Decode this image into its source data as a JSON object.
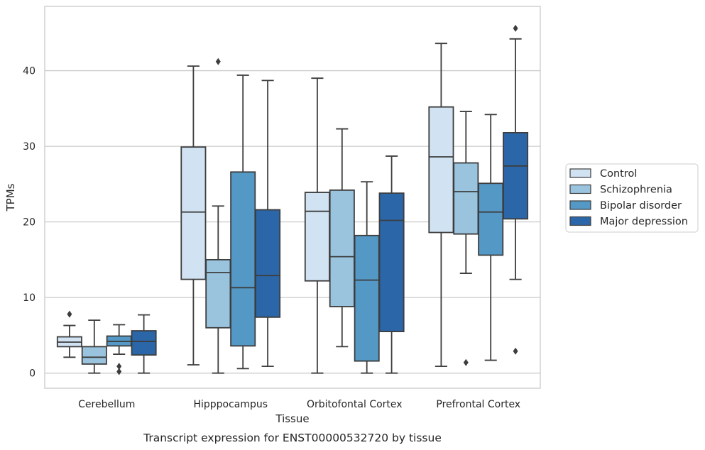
{
  "caption": "Transcript expression for ENST00000532720 by tissue",
  "chart_data": {
    "type": "box",
    "xlabel": "Tissue",
    "ylabel": "TPMs",
    "ylim": [
      -2,
      48.5
    ],
    "yticks": [
      0,
      10,
      20,
      30,
      40
    ],
    "grid": "horizontal",
    "legend_position": "right",
    "categories": [
      "Cerebellum",
      "Hipppocampus",
      "Orbitofontal Cortex",
      "Prefrontal Cortex"
    ],
    "series": [
      {
        "name": "Control",
        "color": "#d1e2f2",
        "boxes": [
          {
            "whislo": 2.1,
            "q1": 3.5,
            "med": 4.1,
            "q3": 4.8,
            "whishi": 6.3,
            "fliers": [
              7.8
            ]
          },
          {
            "whislo": 1.1,
            "q1": 12.4,
            "med": 21.3,
            "q3": 29.9,
            "whishi": 40.6,
            "fliers": []
          },
          {
            "whislo": 0.0,
            "q1": 12.2,
            "med": 21.4,
            "q3": 23.9,
            "whishi": 39.0,
            "fliers": []
          },
          {
            "whislo": 0.9,
            "q1": 18.6,
            "med": 28.6,
            "q3": 35.2,
            "whishi": 43.6,
            "fliers": []
          }
        ]
      },
      {
        "name": "Schizophrenia",
        "color": "#9ac4de",
        "boxes": [
          {
            "whislo": 0.0,
            "q1": 1.2,
            "med": 2.1,
            "q3": 3.5,
            "whishi": 7.0,
            "fliers": []
          },
          {
            "whislo": 0.0,
            "q1": 6.0,
            "med": 13.3,
            "q3": 15.0,
            "whishi": 22.1,
            "fliers": [
              41.2
            ]
          },
          {
            "whislo": 3.5,
            "q1": 8.8,
            "med": 15.4,
            "q3": 24.2,
            "whishi": 32.3,
            "fliers": []
          },
          {
            "whislo": 13.2,
            "q1": 18.4,
            "med": 24.0,
            "q3": 27.8,
            "whishi": 34.6,
            "fliers": [
              1.4
            ]
          }
        ]
      },
      {
        "name": "Bipolar disorder",
        "color": "#5498c5",
        "boxes": [
          {
            "whislo": 2.5,
            "q1": 3.6,
            "med": 4.2,
            "q3": 4.9,
            "whishi": 6.4,
            "fliers": [
              0.9,
              0.2
            ]
          },
          {
            "whislo": 0.6,
            "q1": 3.6,
            "med": 11.3,
            "q3": 26.6,
            "whishi": 39.4,
            "fliers": []
          },
          {
            "whislo": 0.0,
            "q1": 1.6,
            "med": 12.3,
            "q3": 18.2,
            "whishi": 25.3,
            "fliers": []
          },
          {
            "whislo": 1.7,
            "q1": 15.6,
            "med": 21.3,
            "q3": 25.1,
            "whishi": 34.2,
            "fliers": []
          }
        ]
      },
      {
        "name": "Major depression",
        "color": "#2b67a8",
        "boxes": [
          {
            "whislo": 0.0,
            "q1": 2.4,
            "med": 4.2,
            "q3": 5.6,
            "whishi": 7.7,
            "fliers": []
          },
          {
            "whislo": 0.9,
            "q1": 7.4,
            "med": 12.9,
            "q3": 21.6,
            "whishi": 38.7,
            "fliers": []
          },
          {
            "whislo": 0.0,
            "q1": 5.5,
            "med": 20.2,
            "q3": 23.8,
            "whishi": 28.7,
            "fliers": []
          },
          {
            "whislo": 12.4,
            "q1": 20.4,
            "med": 27.4,
            "q3": 31.8,
            "whishi": 44.2,
            "fliers": [
              45.6,
              2.9
            ]
          }
        ]
      }
    ]
  }
}
